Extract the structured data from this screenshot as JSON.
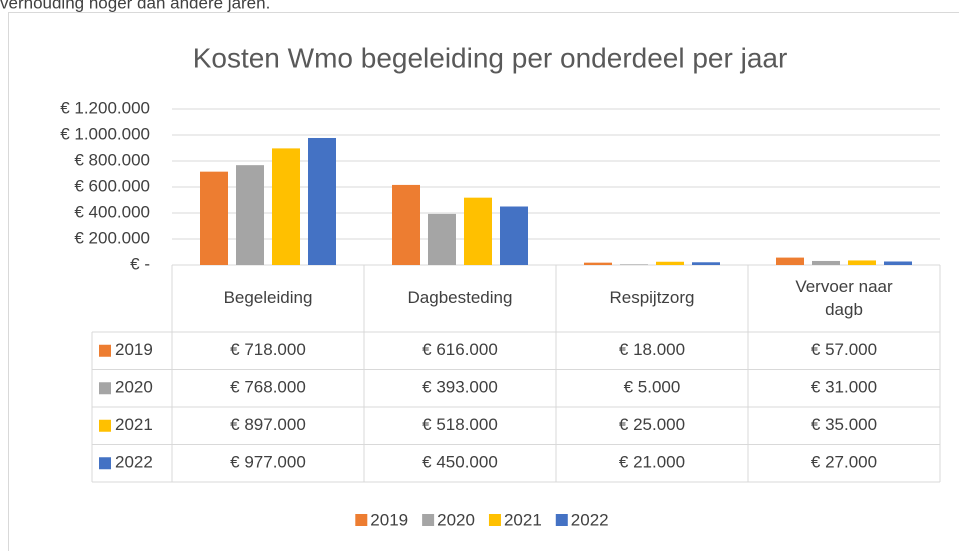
{
  "page_text": "verhouding hoger dan andere jaren.",
  "chart_data": {
    "type": "bar",
    "title": "Kosten Wmo begeleiding per onderdeel per jaar",
    "categories": [
      "Begeleiding",
      "Dagbesteding",
      "Respijtzorg",
      "Vervoer naar dagb"
    ],
    "series": [
      {
        "name": "2019",
        "color": "#ed7d31",
        "values": [
          718000,
          616000,
          18000,
          57000
        ],
        "value_labels": [
          "€ 718.000",
          "€ 616.000",
          "€ 18.000",
          "€ 57.000"
        ]
      },
      {
        "name": "2020",
        "color": "#a5a5a5",
        "values": [
          768000,
          393000,
          5000,
          31000
        ],
        "value_labels": [
          "€ 768.000",
          "€ 393.000",
          "€ 5.000",
          "€ 31.000"
        ]
      },
      {
        "name": "2021",
        "color": "#ffc000",
        "values": [
          897000,
          518000,
          25000,
          35000
        ],
        "value_labels": [
          "€ 897.000",
          "€ 518.000",
          "€ 25.000",
          "€ 35.000"
        ]
      },
      {
        "name": "2022",
        "color": "#4472c4",
        "values": [
          977000,
          450000,
          21000,
          27000
        ],
        "value_labels": [
          "€ 977.000",
          "€ 450.000",
          "€ 21.000",
          "€ 27.000"
        ]
      }
    ],
    "ylim": [
      0,
      1200000
    ],
    "yticks": [
      {
        "value": 0,
        "label": "€ -"
      },
      {
        "value": 200000,
        "label": "€ 200.000"
      },
      {
        "value": 400000,
        "label": "€ 400.000"
      },
      {
        "value": 600000,
        "label": "€ 600.000"
      },
      {
        "value": 800000,
        "label": "€ 800.000"
      },
      {
        "value": 1000000,
        "label": "€ 1.000.000"
      },
      {
        "value": 1200000,
        "label": "€ 1.200.000"
      }
    ],
    "grid": true,
    "legend": "bottom",
    "data_table": true
  }
}
